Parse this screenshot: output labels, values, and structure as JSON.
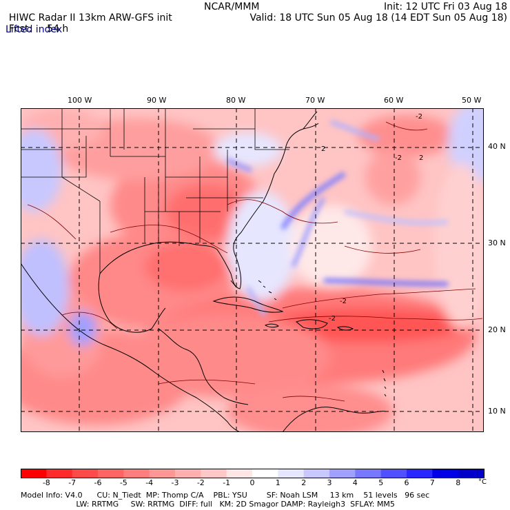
{
  "header": {
    "title_line": "HIWC Radar II 13km ARW-GFS init",
    "org": "NCAR/MMM",
    "fcst_label": "Fcst:",
    "fcst_value": "54 h",
    "init": "Init: 12 UTC Fri 03 Aug 18",
    "valid": "Valid: 18 UTC Sun 05 Aug 18 (14 EDT Sun 05 Aug 18)",
    "field": "Lifted index"
  },
  "map": {
    "lon_labels": [
      "100 W",
      "90 W",
      "80 W",
      "70 W",
      "60 W",
      "50 W"
    ],
    "lat_labels": [
      "40 N",
      "30 N",
      "20 N",
      "10 N"
    ],
    "contour_labels": [
      "-2",
      "2",
      "2",
      "-2",
      "-2",
      "-2"
    ]
  },
  "colorbar": {
    "ticks": [
      "-8",
      "-7",
      "-6",
      "-5",
      "-4",
      "-3",
      "-2",
      "-1",
      "0",
      "1",
      "2",
      "3",
      "4",
      "5",
      "6",
      "7",
      "8"
    ],
    "unit": "°C",
    "colors": [
      "#ff0000",
      "#ff2a2a",
      "#ff4a4a",
      "#ff6464",
      "#ff7d7d",
      "#ff9696",
      "#ffafaf",
      "#ffc8c8",
      "#ffe6e6",
      "#ffffff",
      "#e6e6ff",
      "#c8c8ff",
      "#a0a0ff",
      "#7878ff",
      "#5050ff",
      "#2828ff",
      "#0000e6",
      "#0000c8"
    ]
  },
  "model_info": {
    "line1": "Model Info: V4.0      CU: N_Tiedt  MP: Thomp C/A    PBL: YSU        SF: Noah LSM     13 km    51 levels   96 sec",
    "line2": "                       LW: RRTMG     SW: RRTMG  DIFF: full   KM: 2D Smagor DAMP: Rayleigh3  SFLAY: MM5"
  }
}
